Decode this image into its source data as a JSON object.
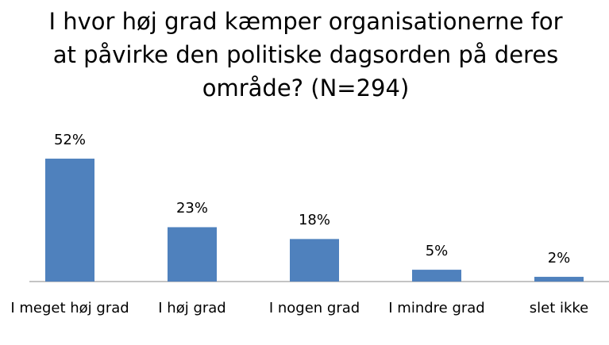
{
  "chart_data": {
    "type": "bar",
    "title": "I hvor høj grad kæmper organisationerne for at påvirke den politiske dagsorden på deres område? (N=294)",
    "categories": [
      "I meget høj grad",
      "I høj grad",
      "I nogen grad",
      "I mindre grad",
      "slet ikke"
    ],
    "values": [
      52,
      23,
      18,
      5,
      2
    ],
    "value_labels": [
      "52%",
      "23%",
      "18%",
      "5%",
      "2%"
    ],
    "color": "#4f81bd"
  }
}
